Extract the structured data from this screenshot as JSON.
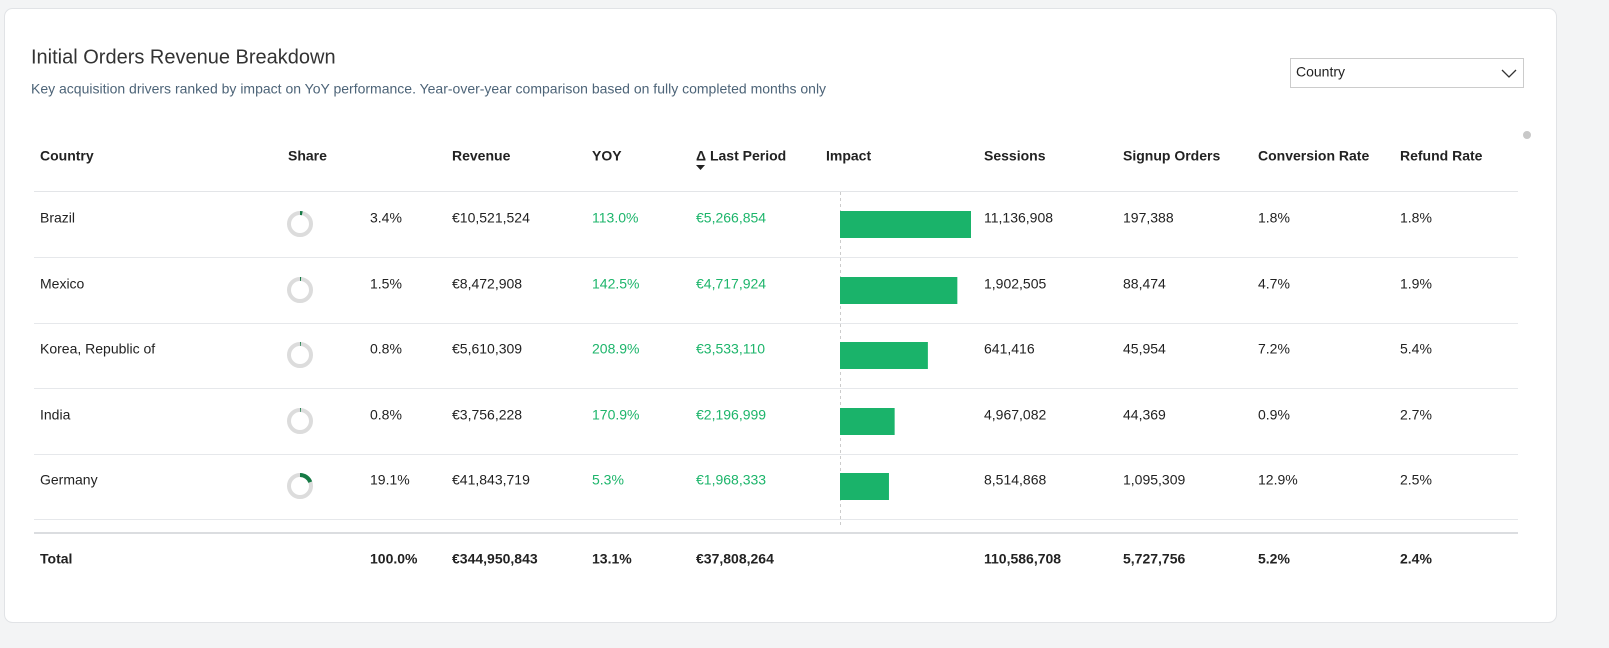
{
  "header": {
    "title": "Initial Orders Revenue Breakdown",
    "subtitle": "Key acquisition drivers ranked by impact on YoY performance. Year-over-year comparison based on fully completed months only"
  },
  "dropdown": {
    "selected": "Country"
  },
  "table": {
    "columns": [
      "Country",
      "Share",
      "Revenue",
      "YOY",
      "Δ Last Period",
      "Impact",
      "Sessions",
      "Signup Orders",
      "Conversion Rate",
      "Refund Rate"
    ],
    "rows": [
      {
        "country": "Brazil",
        "share": "3.4%",
        "revenue": "€10,521,524",
        "yoy": "113.0%",
        "delta": "€5,266,854",
        "sessions": "11,136,908",
        "signup_orders": "197,388",
        "conversion_rate": "1.8%",
        "refund_rate": "1.8%"
      },
      {
        "country": "Mexico",
        "share": "1.5%",
        "revenue": "€8,472,908",
        "yoy": "142.5%",
        "delta": "€4,717,924",
        "sessions": "1,902,505",
        "signup_orders": "88,474",
        "conversion_rate": "4.7%",
        "refund_rate": "1.9%"
      },
      {
        "country": "Korea, Republic of",
        "share": "0.8%",
        "revenue": "€5,610,309",
        "yoy": "208.9%",
        "delta": "€3,533,110",
        "sessions": "641,416",
        "signup_orders": "45,954",
        "conversion_rate": "7.2%",
        "refund_rate": "5.4%"
      },
      {
        "country": "India",
        "share": "0.8%",
        "revenue": "€3,756,228",
        "yoy": "170.9%",
        "delta": "€2,196,999",
        "sessions": "4,967,082",
        "signup_orders": "44,369",
        "conversion_rate": "0.9%",
        "refund_rate": "2.7%"
      },
      {
        "country": "Germany",
        "share": "19.1%",
        "revenue": "€41,843,719",
        "yoy": "5.3%",
        "delta": "€1,968,333",
        "sessions": "8,514,868",
        "signup_orders": "1,095,309",
        "conversion_rate": "12.9%",
        "refund_rate": "2.5%"
      }
    ],
    "total": {
      "country": "Total",
      "share": "100.0%",
      "revenue": "€344,950,843",
      "yoy": "13.1%",
      "delta": "€37,808,264",
      "sessions": "110,586,708",
      "signup_orders": "5,727,756",
      "conversion_rate": "5.2%",
      "refund_rate": "2.4%"
    }
  }
}
